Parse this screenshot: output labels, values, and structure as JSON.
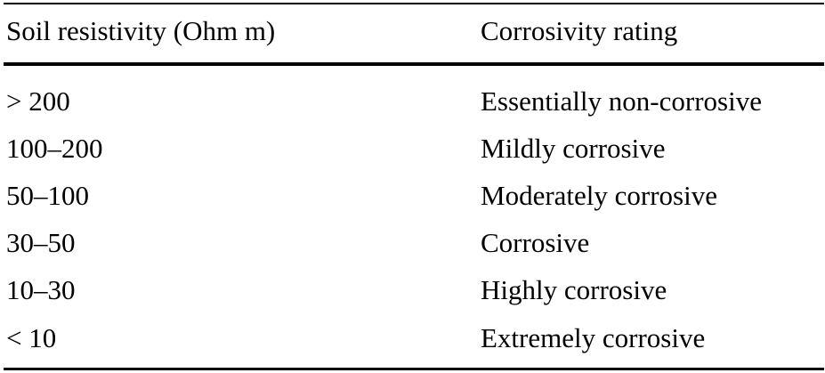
{
  "table": {
    "headers": [
      "Soil resistivity (Ohm m)",
      "Corrosivity rating"
    ],
    "rows": [
      [
        "> 200",
        "Essentially non-corrosive"
      ],
      [
        "100–200",
        "Mildly corrosive"
      ],
      [
        "50–100",
        "Moderately corrosive"
      ],
      [
        "30–50",
        "Corrosive"
      ],
      [
        "10–30",
        "Highly corrosive"
      ],
      [
        "< 10",
        "Extremely corrosive"
      ]
    ]
  }
}
